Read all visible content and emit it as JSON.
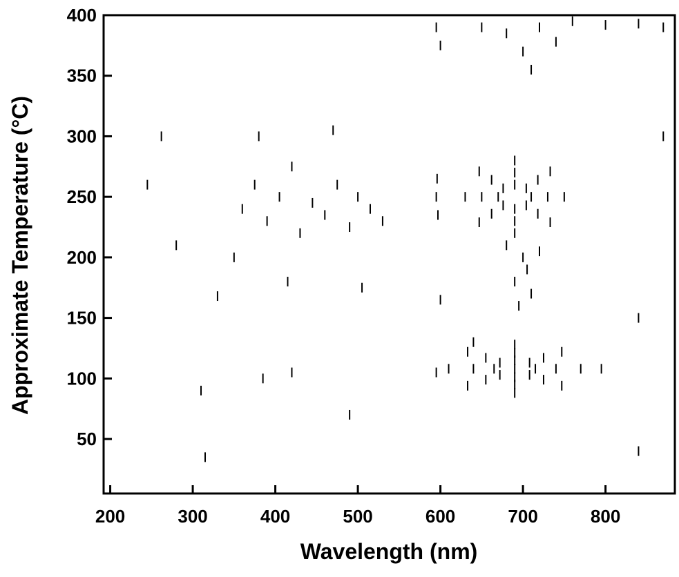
{
  "chart_data": {
    "type": "scatter",
    "xlabel": "Wavelength (nm)",
    "ylabel": "Approximate Temperature (°C)",
    "xlim": [
      192,
      884
    ],
    "ylim": [
      5,
      400
    ],
    "xticks": [
      200,
      300,
      400,
      500,
      600,
      700,
      800
    ],
    "yticks": [
      50,
      100,
      150,
      200,
      250,
      300,
      350,
      400
    ],
    "color": "#000000",
    "x": [
      750,
      733,
      690,
      647,
      630,
      647,
      690,
      733,
      730,
      718,
      690,
      662,
      650,
      662,
      690,
      718,
      710,
      704,
      690,
      676,
      670,
      676,
      690,
      704,
      700,
      690,
      710,
      695,
      705,
      680,
      720,
      595,
      597,
      596,
      770,
      747,
      690,
      633,
      610,
      633,
      690,
      747,
      740,
      725,
      690,
      655,
      640,
      655,
      690,
      725,
      715,
      708,
      690,
      672,
      665,
      672,
      690,
      708,
      690,
      795,
      595,
      600,
      650,
      680,
      700,
      720,
      740,
      760,
      800,
      840,
      870,
      710,
      595,
      360,
      375,
      390,
      405,
      420,
      430,
      445,
      460,
      475,
      490,
      500,
      515,
      530,
      380,
      470,
      415,
      505,
      350,
      245,
      262,
      280,
      310,
      315,
      385,
      420,
      490,
      840,
      840,
      870,
      330,
      600,
      640
    ],
    "y": [
      250,
      271,
      280,
      271,
      250,
      229,
      220,
      229,
      250,
      264,
      270,
      264,
      250,
      236,
      230,
      236,
      250,
      257,
      260,
      257,
      250,
      243,
      240,
      243,
      200,
      180,
      170,
      160,
      190,
      210,
      205,
      250,
      235,
      265,
      108,
      122,
      128,
      122,
      108,
      94,
      88,
      94,
      108,
      117,
      121,
      117,
      108,
      99,
      95,
      99,
      108,
      113,
      115,
      113,
      108,
      103,
      101,
      103,
      108,
      108,
      105,
      375,
      390,
      385,
      370,
      390,
      378,
      395,
      392,
      393,
      390,
      355,
      390,
      240,
      260,
      230,
      250,
      275,
      220,
      245,
      235,
      260,
      225,
      250,
      240,
      230,
      300,
      305,
      180,
      175,
      200,
      260,
      300,
      210,
      90,
      35,
      100,
      105,
      70,
      150,
      40,
      300,
      168,
      165,
      130
    ]
  }
}
